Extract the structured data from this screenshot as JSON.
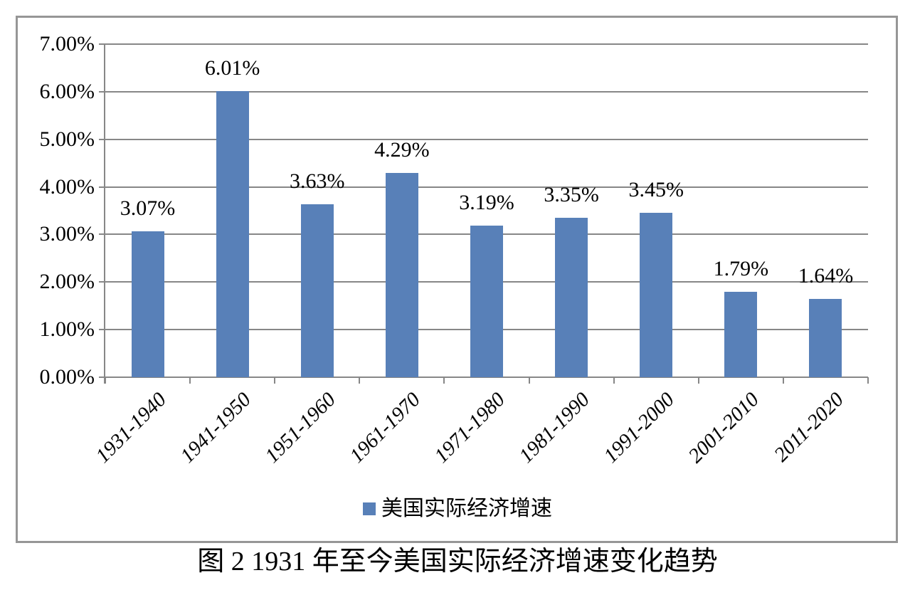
{
  "chart_data": {
    "type": "bar",
    "title": "图 2 1931 年至今美国实际经济增速变化趋势",
    "categories": [
      "1931-1940",
      "1941-1950",
      "1951-1960",
      "1961-1970",
      "1971-1980",
      "1981-1990",
      "1991-2000",
      "2001-2010",
      "2011-2020"
    ],
    "series": [
      {
        "name": "美国实际经济增速",
        "values": [
          3.07,
          6.01,
          3.63,
          4.29,
          3.19,
          3.35,
          3.45,
          1.79,
          1.64
        ]
      }
    ],
    "value_labels": [
      "3.07%",
      "6.01%",
      "3.63%",
      "4.29%",
      "3.19%",
      "3.35%",
      "3.45%",
      "1.79%",
      "1.64%"
    ],
    "y_tick_labels": [
      "0.00%",
      "1.00%",
      "2.00%",
      "3.00%",
      "4.00%",
      "5.00%",
      "6.00%",
      "7.00%"
    ],
    "ylim": [
      0,
      7
    ],
    "y_tick_step": 1,
    "grid": true,
    "xlabel": "",
    "ylabel": "",
    "legend_position": "bottom-center"
  },
  "legend": {
    "label": "美国实际经济增速"
  },
  "caption": {
    "text": "图 2 1931 年至今美国实际经济增速变化趋势"
  },
  "colors": {
    "bar": "#5880B8",
    "gridline": "#878787",
    "axis": "#878787",
    "frame_border": "#969696",
    "text": "#000000"
  }
}
